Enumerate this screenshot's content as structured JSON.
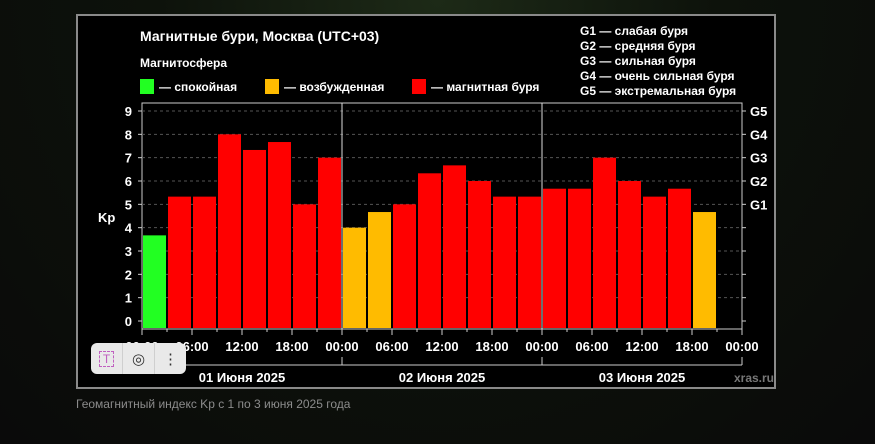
{
  "chart_data": {
    "type": "bar",
    "title": "Магнитные бури, Москва (UTC+03)",
    "legend_title": "Магнитосфера",
    "legend": [
      {
        "label": "— спокойная",
        "color": "#22ff22",
        "key": "quiet"
      },
      {
        "label": "— возбужденная",
        "color": "#ffbb00",
        "key": "active"
      },
      {
        "label": "— магнитная буря",
        "color": "#ff0000",
        "key": "storm"
      }
    ],
    "g_scale": [
      "G1 — слабая буря",
      "G2 — средняя буря",
      "G3 — сильная буря",
      "G4 — очень сильная буря",
      "G5 — экстремальная буря"
    ],
    "ylabel": "Kp",
    "ylim": [
      0,
      9
    ],
    "yticks": [
      "0",
      "1",
      "2",
      "3",
      "4",
      "5",
      "6",
      "7",
      "8",
      "9"
    ],
    "right_ticks": [
      {
        "label": "G1",
        "value": 5
      },
      {
        "label": "G2",
        "value": 6
      },
      {
        "label": "G3",
        "value": 7
      },
      {
        "label": "G4",
        "value": 8
      },
      {
        "label": "G5",
        "value": 9
      }
    ],
    "xtick_labels": [
      "00:00",
      "06:00",
      "12:00",
      "18:00",
      "00:00",
      "06:00",
      "12:00",
      "18:00",
      "00:00",
      "06:00",
      "12:00",
      "18:00",
      "00:00"
    ],
    "days": [
      "01 Июня 2025",
      "02 Июня 2025",
      "03 Июня 2025"
    ],
    "values": [
      3.67,
      5.33,
      5.33,
      8.0,
      7.33,
      7.67,
      5.0,
      7.0,
      4.0,
      4.67,
      5.0,
      6.33,
      6.67,
      6.0,
      5.33,
      5.33,
      5.67,
      5.67,
      7.0,
      6.0,
      5.33,
      5.67,
      4.67
    ],
    "levels": [
      "quiet",
      "storm",
      "storm",
      "storm",
      "storm",
      "storm",
      "storm",
      "storm",
      "active",
      "active",
      "storm",
      "storm",
      "storm",
      "storm",
      "storm",
      "storm",
      "storm",
      "storm",
      "storm",
      "storm",
      "storm",
      "storm",
      "active"
    ],
    "watermark": "xras.ru"
  },
  "caption": "Геомагнитный индекс Kp с 1 по 3 июня 2025 года",
  "toolbar": {
    "text_icon": "T",
    "lens_icon": "◎",
    "more_icon": "⋮"
  }
}
